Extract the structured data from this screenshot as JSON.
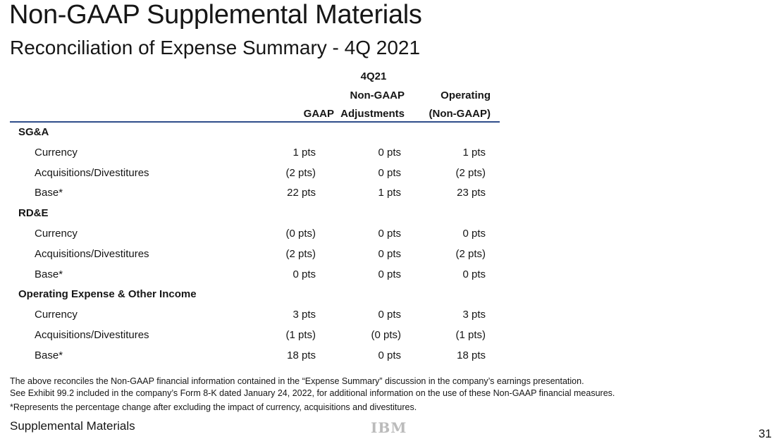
{
  "title": "Non-GAAP Supplemental Materials",
  "subtitle": "Reconciliation of Expense Summary - 4Q 2021",
  "table": {
    "period": "4Q21",
    "columns": [
      {
        "line1": "",
        "line2": "GAAP"
      },
      {
        "line1": "Non-GAAP",
        "line2": "Adjustments"
      },
      {
        "line1": "Operating",
        "line2": "(Non-GAAP)"
      }
    ],
    "sections": [
      {
        "name": "SG&A",
        "rows": [
          {
            "label": "Currency",
            "values": [
              "1 pts",
              "0 pts",
              "1 pts"
            ]
          },
          {
            "label": "Acquisitions/Divestitures",
            "values": [
              "(2 pts)",
              "0 pts",
              "(2 pts)"
            ]
          },
          {
            "label": "Base*",
            "values": [
              "22 pts",
              "1 pts",
              "23 pts"
            ]
          }
        ]
      },
      {
        "name": "RD&E",
        "rows": [
          {
            "label": "Currency",
            "values": [
              "(0 pts)",
              "0 pts",
              "0 pts"
            ]
          },
          {
            "label": "Acquisitions/Divestitures",
            "values": [
              "(2 pts)",
              "0 pts",
              "(2 pts)"
            ]
          },
          {
            "label": "Base*",
            "values": [
              "0 pts",
              "0 pts",
              "0 pts"
            ]
          }
        ]
      },
      {
        "name": "Operating Expense & Other Income",
        "rows": [
          {
            "label": "Currency",
            "values": [
              "3 pts",
              "0 pts",
              "3 pts"
            ]
          },
          {
            "label": "Acquisitions/Divestitures",
            "values": [
              "(1 pts)",
              "(0 pts)",
              "(1 pts)"
            ]
          },
          {
            "label": "Base*",
            "values": [
              "18 pts",
              "0 pts",
              "18 pts"
            ]
          }
        ]
      }
    ]
  },
  "notes": [
    "The above reconciles the Non-GAAP financial information contained in the “Expense Summary” discussion in the company’s earnings presentation.",
    "See Exhibit 99.2 included in the company’s Form 8-K dated January 24, 2022, for additional information on the use of these Non-GAAP financial measures.",
    "*Represents the percentage change after excluding the impact of currency, acquisitions and divestitures."
  ],
  "footer": {
    "label": "Supplemental Materials",
    "logo": "IBM",
    "page": "31"
  }
}
